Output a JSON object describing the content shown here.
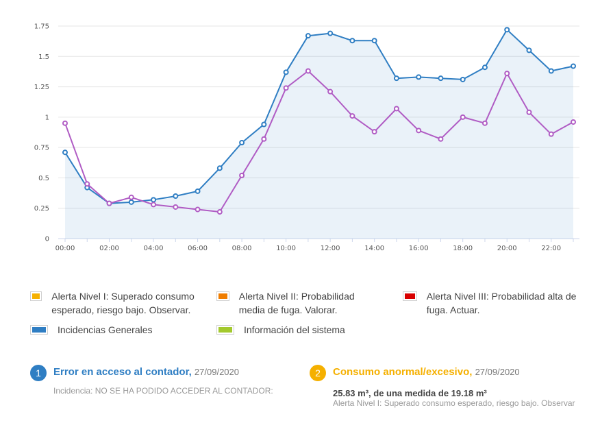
{
  "chart_data": {
    "type": "line",
    "x": [
      "00:00",
      "01:00",
      "02:00",
      "03:00",
      "04:00",
      "05:00",
      "06:00",
      "07:00",
      "08:00",
      "09:00",
      "10:00",
      "11:00",
      "12:00",
      "13:00",
      "14:00",
      "15:00",
      "16:00",
      "17:00",
      "18:00",
      "19:00",
      "20:00",
      "21:00",
      "22:00",
      "23:00"
    ],
    "xticks": [
      "00:00",
      "02:00",
      "04:00",
      "06:00",
      "08:00",
      "10:00",
      "12:00",
      "14:00",
      "16:00",
      "18:00",
      "20:00",
      "22:00"
    ],
    "yticks": [
      "0",
      "0.25",
      "0.5",
      "0.75",
      "1",
      "1.25",
      "1.5",
      "1.75"
    ],
    "ylim": [
      0,
      1.75
    ],
    "grid": true,
    "series": [
      {
        "color": "#2f7ec3",
        "area": true,
        "values": [
          0.71,
          0.42,
          0.29,
          0.3,
          0.32,
          0.35,
          0.39,
          0.58,
          0.79,
          0.94,
          1.37,
          1.67,
          1.69,
          1.63,
          1.63,
          1.32,
          1.33,
          1.32,
          1.31,
          1.41,
          1.72,
          1.55,
          1.38,
          1.42
        ]
      },
      {
        "color": "#b05cc4",
        "area": false,
        "values": [
          0.95,
          0.45,
          0.29,
          0.34,
          0.28,
          0.26,
          0.24,
          0.22,
          0.52,
          0.82,
          1.24,
          1.38,
          1.21,
          1.01,
          0.88,
          1.07,
          0.89,
          0.82,
          1.0,
          0.95,
          1.36,
          1.04,
          0.86,
          0.96
        ]
      }
    ],
    "title": "",
    "xlabel": "",
    "ylabel": ""
  },
  "legend": [
    {
      "label": "Alerta Nivel I: Superado consumo esperado, riesgo bajo. Observar.",
      "color": "#f5b000"
    },
    {
      "label": "Alerta Nivel II: Probabilidad media de fuga. Valorar.",
      "color": "#f07d00"
    },
    {
      "label": "Alerta Nivel III: Probabilidad alta de fuga. Actuar.",
      "color": "#d80000"
    },
    {
      "label": "Incidencias Generales",
      "color": "#2f7ec3"
    },
    {
      "label": "Información del sistema",
      "color": "#a3c92d"
    }
  ],
  "incidents": [
    {
      "number": "1",
      "color": "#2f7ec3",
      "title": "Error en acceso al contador,",
      "date": "27/09/2020",
      "detail": "Incidencia: NO SE HA PODIDO ACCEDER AL CONTADOR:"
    },
    {
      "number": "2",
      "color": "#f5b000",
      "title": "Consumo anormal/excesivo,",
      "date": "27/09/2020",
      "value": "25.83 m³, de una medida de 19.18 m³",
      "sub": "Alerta Nivel I: Superado consumo esperado, riesgo bajo. Observar"
    }
  ]
}
